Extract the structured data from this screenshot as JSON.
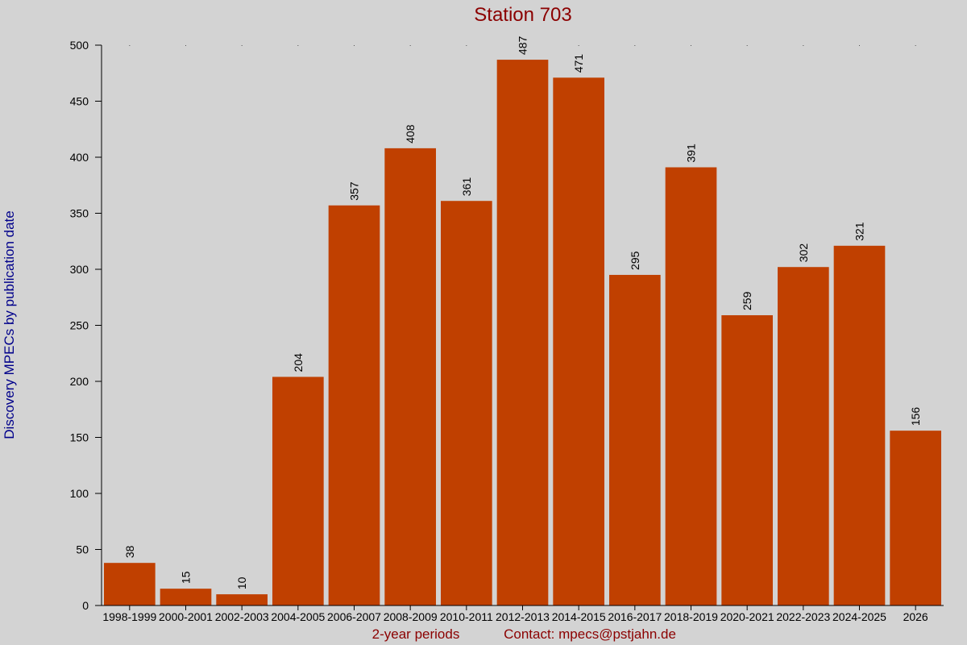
{
  "chart_data": {
    "type": "bar",
    "title": "Station 703",
    "xlabel": "2-year periods",
    "ylabel": "Discovery MPECs by publication date",
    "contact": "Contact: mpecs@pstjahn.de",
    "categories": [
      "1998-1999",
      "2000-2001",
      "2002-2003",
      "2004-2005",
      "2006-2007",
      "2008-2009",
      "2010-2011",
      "2012-2013",
      "2014-2015",
      "2016-2017",
      "2018-2019",
      "2020-2021",
      "2022-2023",
      "2024-2025",
      "2026"
    ],
    "values": [
      38,
      15,
      10,
      204,
      357,
      408,
      361,
      487,
      471,
      295,
      391,
      259,
      302,
      321,
      156
    ],
    "yticks": [
      0,
      50,
      100,
      150,
      200,
      250,
      300,
      350,
      400,
      450,
      500
    ],
    "ylim": [
      0,
      500
    ],
    "grid": false,
    "bar_color": "#c04000",
    "background_color": "#d3d3d3",
    "title_color": "#8b0000",
    "ylabel_color": "#00008b"
  }
}
